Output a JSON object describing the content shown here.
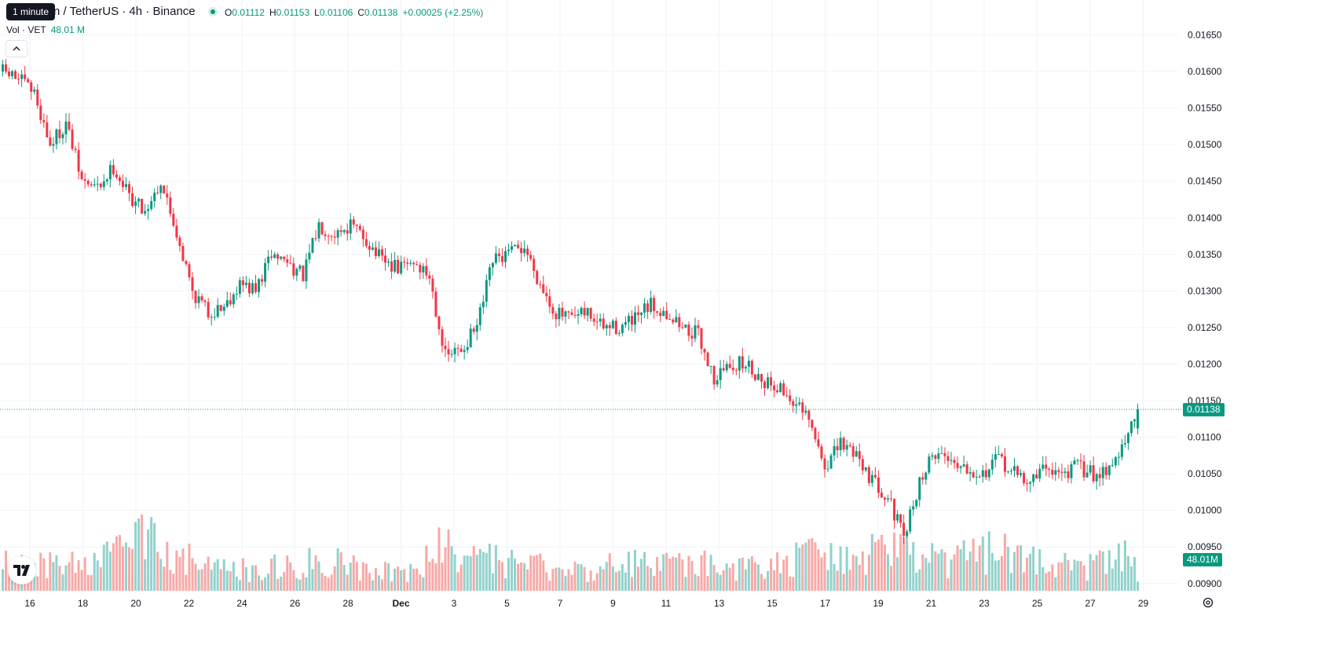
{
  "tooltip": "1 minute",
  "header": {
    "symbol": "n / TetherUS · 4h · Binance",
    "ohlc": [
      {
        "k": "O",
        "v": "0.01112"
      },
      {
        "k": "H",
        "v": "0.01153"
      },
      {
        "k": "L",
        "v": "0.01106"
      },
      {
        "k": "C",
        "v": "0.01138"
      },
      {
        "k": "",
        "v": "+0.00025 (+2.25%)"
      }
    ]
  },
  "volume_legend": {
    "label": "Vol · VET",
    "value": "48.01 M"
  },
  "price_tag": "0.01138",
  "volume_tag": "48.01M",
  "colors": {
    "up": "#089981",
    "down": "#f23645",
    "vol_up": "#92d2cc",
    "vol_down": "#f7a9a7"
  },
  "icons": {
    "collapse": "chevron-up-icon",
    "logo": "tradingview-logo-icon",
    "settings": "gear-icon"
  },
  "chart_data": {
    "type": "candlestick",
    "title": "",
    "interval": "4h",
    "y_axis": {
      "ticks": [
        "0.01650",
        "0.01600",
        "0.01550",
        "0.01500",
        "0.01450",
        "0.01400",
        "0.01350",
        "0.01300",
        "0.01250",
        "0.01200",
        "0.01150",
        "0.01100",
        "0.01050",
        "0.01000",
        "0.00950",
        "0.00900"
      ],
      "range": [
        0.0089,
        0.0166
      ]
    },
    "x_axis": {
      "ticks": [
        "16",
        "18",
        "20",
        "22",
        "24",
        "26",
        "28",
        "Dec",
        "3",
        "5",
        "7",
        "9",
        "11",
        "13",
        "15",
        "17",
        "19",
        "21",
        "23",
        "25",
        "27",
        "29"
      ]
    },
    "last_price": 0.01138,
    "anchor_closes": [
      [
        0,
        0.016
      ],
      [
        5,
        0.0159
      ],
      [
        10,
        0.0157
      ],
      [
        15,
        0.015
      ],
      [
        20,
        0.0153
      ],
      [
        25,
        0.0145
      ],
      [
        30,
        0.0144
      ],
      [
        35,
        0.0147
      ],
      [
        40,
        0.0143
      ],
      [
        45,
        0.0141
      ],
      [
        50,
        0.0145
      ],
      [
        55,
        0.0138
      ],
      [
        60,
        0.013
      ],
      [
        65,
        0.0127
      ],
      [
        70,
        0.0128
      ],
      [
        75,
        0.0131
      ],
      [
        80,
        0.013
      ],
      [
        85,
        0.0135
      ],
      [
        90,
        0.0134
      ],
      [
        95,
        0.0132
      ],
      [
        100,
        0.0139
      ],
      [
        105,
        0.0138
      ],
      [
        110,
        0.0139
      ],
      [
        115,
        0.0137
      ],
      [
        120,
        0.0134
      ],
      [
        125,
        0.0133
      ],
      [
        130,
        0.0134
      ],
      [
        135,
        0.0132
      ],
      [
        140,
        0.0121
      ],
      [
        145,
        0.0122
      ],
      [
        150,
        0.0125
      ],
      [
        155,
        0.0134
      ],
      [
        160,
        0.0135
      ],
      [
        165,
        0.0136
      ],
      [
        170,
        0.0131
      ],
      [
        175,
        0.0127
      ],
      [
        180,
        0.0126
      ],
      [
        185,
        0.0127
      ],
      [
        190,
        0.0125
      ],
      [
        195,
        0.0125
      ],
      [
        200,
        0.0126
      ],
      [
        205,
        0.0128
      ],
      [
        210,
        0.0127
      ],
      [
        215,
        0.0125
      ],
      [
        220,
        0.0124
      ],
      [
        225,
        0.0118
      ],
      [
        230,
        0.012
      ],
      [
        235,
        0.012
      ],
      [
        240,
        0.0118
      ],
      [
        245,
        0.0117
      ],
      [
        250,
        0.0115
      ],
      [
        255,
        0.0112
      ],
      [
        260,
        0.0106
      ],
      [
        265,
        0.0109
      ],
      [
        270,
        0.0108
      ],
      [
        275,
        0.0104
      ],
      [
        280,
        0.0102
      ],
      [
        285,
        0.0096
      ],
      [
        290,
        0.0104
      ],
      [
        295,
        0.0108
      ],
      [
        300,
        0.0107
      ],
      [
        305,
        0.0106
      ],
      [
        310,
        0.0105
      ],
      [
        315,
        0.0107
      ],
      [
        320,
        0.0105
      ],
      [
        325,
        0.0104
      ],
      [
        330,
        0.0106
      ],
      [
        335,
        0.0105
      ],
      [
        340,
        0.0106
      ],
      [
        345,
        0.0105
      ],
      [
        350,
        0.0106
      ],
      [
        355,
        0.0109
      ],
      [
        359,
        0.01138
      ]
    ],
    "volume_profile": [
      [
        0,
        0.45
      ],
      [
        30,
        0.45
      ],
      [
        45,
        0.95
      ],
      [
        55,
        0.7
      ],
      [
        65,
        0.4
      ],
      [
        80,
        0.35
      ],
      [
        100,
        0.55
      ],
      [
        130,
        0.3
      ],
      [
        140,
        0.85
      ],
      [
        150,
        0.55
      ],
      [
        180,
        0.35
      ],
      [
        200,
        0.5
      ],
      [
        220,
        0.45
      ],
      [
        240,
        0.4
      ],
      [
        260,
        0.65
      ],
      [
        280,
        0.7
      ],
      [
        300,
        0.5
      ],
      [
        320,
        0.8
      ],
      [
        340,
        0.35
      ],
      [
        355,
        0.7
      ],
      [
        359,
        0.4
      ]
    ]
  }
}
